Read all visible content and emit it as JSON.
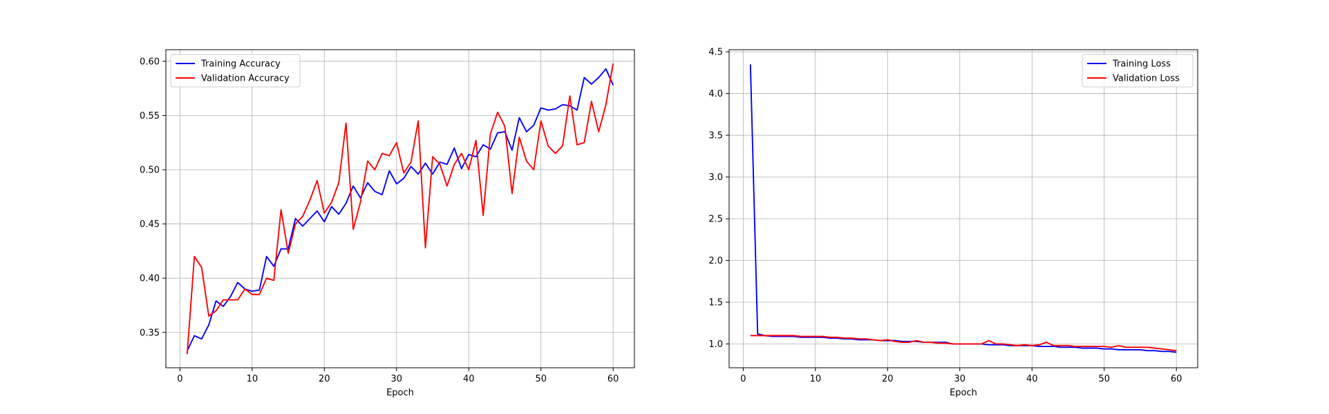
{
  "chart_data": [
    {
      "type": "line",
      "title": "",
      "xlabel": "Epoch",
      "ylabel": "",
      "xlim": [
        -1.95,
        62.95
      ],
      "ylim": [
        0.3174,
        0.6107
      ],
      "xticks": [
        0,
        10,
        20,
        30,
        40,
        50,
        60
      ],
      "xtick_labels": [
        "0",
        "10",
        "20",
        "30",
        "40",
        "50",
        "60"
      ],
      "yticks": [
        0.35,
        0.4,
        0.45,
        0.5,
        0.55,
        0.6
      ],
      "ytick_labels": [
        "0.35",
        "0.40",
        "0.45",
        "0.50",
        "0.55",
        "0.60"
      ],
      "grid": true,
      "legend_position": "upper left",
      "x": [
        1,
        2,
        3,
        4,
        5,
        6,
        7,
        8,
        9,
        10,
        11,
        12,
        13,
        14,
        15,
        16,
        17,
        18,
        19,
        20,
        21,
        22,
        23,
        24,
        25,
        26,
        27,
        28,
        29,
        30,
        31,
        32,
        33,
        34,
        35,
        36,
        37,
        38,
        39,
        40,
        41,
        42,
        43,
        44,
        45,
        46,
        47,
        48,
        49,
        50,
        51,
        52,
        53,
        54,
        55,
        56,
        57,
        58,
        59,
        60
      ],
      "series": [
        {
          "name": "Training Accuracy",
          "color": "#0000ff",
          "values": [
            0.333,
            0.347,
            0.344,
            0.357,
            0.379,
            0.374,
            0.383,
            0.396,
            0.39,
            0.388,
            0.389,
            0.42,
            0.411,
            0.427,
            0.427,
            0.455,
            0.448,
            0.455,
            0.462,
            0.452,
            0.466,
            0.459,
            0.469,
            0.485,
            0.474,
            0.488,
            0.48,
            0.477,
            0.499,
            0.487,
            0.492,
            0.503,
            0.496,
            0.506,
            0.496,
            0.507,
            0.505,
            0.52,
            0.501,
            0.514,
            0.512,
            0.523,
            0.519,
            0.534,
            0.535,
            0.518,
            0.548,
            0.535,
            0.541,
            0.557,
            0.555,
            0.556,
            0.56,
            0.559,
            0.555,
            0.585,
            0.579,
            0.585,
            0.593,
            0.578
          ]
        },
        {
          "name": "Validation Accuracy",
          "color": "#ff0000",
          "values": [
            0.33,
            0.42,
            0.41,
            0.365,
            0.37,
            0.38,
            0.38,
            0.38,
            0.39,
            0.385,
            0.385,
            0.4,
            0.398,
            0.463,
            0.423,
            0.45,
            0.457,
            0.472,
            0.49,
            0.46,
            0.47,
            0.488,
            0.543,
            0.445,
            0.47,
            0.508,
            0.5,
            0.515,
            0.513,
            0.525,
            0.497,
            0.507,
            0.545,
            0.428,
            0.512,
            0.505,
            0.485,
            0.505,
            0.515,
            0.5,
            0.527,
            0.458,
            0.533,
            0.553,
            0.54,
            0.478,
            0.53,
            0.508,
            0.5,
            0.545,
            0.522,
            0.515,
            0.522,
            0.568,
            0.523,
            0.525,
            0.563,
            0.535,
            0.56,
            0.598
          ]
        }
      ]
    },
    {
      "type": "line",
      "title": "",
      "xlabel": "Epoch",
      "ylabel": "",
      "xlim": [
        -1.95,
        62.95
      ],
      "ylim": [
        0.7145,
        4.5255
      ],
      "xticks": [
        0,
        10,
        20,
        30,
        40,
        50,
        60
      ],
      "xtick_labels": [
        "0",
        "10",
        "20",
        "30",
        "40",
        "50",
        "60"
      ],
      "yticks": [
        1.0,
        1.5,
        2.0,
        2.5,
        3.0,
        3.5,
        4.0,
        4.5
      ],
      "ytick_labels": [
        "1.0",
        "1.5",
        "2.0",
        "2.5",
        "3.0",
        "3.5",
        "4.0",
        "4.5"
      ],
      "grid": true,
      "legend_position": "upper right",
      "x": [
        1,
        2,
        3,
        4,
        5,
        6,
        7,
        8,
        9,
        10,
        11,
        12,
        13,
        14,
        15,
        16,
        17,
        18,
        19,
        20,
        21,
        22,
        23,
        24,
        25,
        26,
        27,
        28,
        29,
        30,
        31,
        32,
        33,
        34,
        35,
        36,
        37,
        38,
        39,
        40,
        41,
        42,
        43,
        44,
        45,
        46,
        47,
        48,
        49,
        50,
        51,
        52,
        53,
        54,
        55,
        56,
        57,
        58,
        59,
        60
      ],
      "series": [
        {
          "name": "Training Loss",
          "color": "#0000ff",
          "values": [
            4.35,
            1.12,
            1.1,
            1.09,
            1.09,
            1.09,
            1.09,
            1.08,
            1.08,
            1.08,
            1.08,
            1.07,
            1.07,
            1.06,
            1.06,
            1.05,
            1.05,
            1.05,
            1.04,
            1.04,
            1.04,
            1.03,
            1.03,
            1.03,
            1.02,
            1.02,
            1.02,
            1.02,
            1.0,
            1.0,
            1.0,
            1.0,
            1.0,
            0.99,
            0.99,
            0.99,
            0.98,
            0.98,
            0.98,
            0.98,
            0.97,
            0.97,
            0.97,
            0.96,
            0.96,
            0.96,
            0.95,
            0.95,
            0.95,
            0.94,
            0.94,
            0.93,
            0.93,
            0.93,
            0.93,
            0.92,
            0.92,
            0.91,
            0.91,
            0.9
          ]
        },
        {
          "name": "Validation Loss",
          "color": "#ff0000",
          "values": [
            1.1,
            1.1,
            1.1,
            1.1,
            1.1,
            1.1,
            1.1,
            1.09,
            1.09,
            1.09,
            1.09,
            1.08,
            1.08,
            1.07,
            1.07,
            1.06,
            1.06,
            1.05,
            1.04,
            1.05,
            1.03,
            1.02,
            1.02,
            1.04,
            1.02,
            1.02,
            1.01,
            1.01,
            1.0,
            1.0,
            1.0,
            1.0,
            1.0,
            1.04,
            1.0,
            1.0,
            0.99,
            0.98,
            0.99,
            0.98,
            0.99,
            1.02,
            0.98,
            0.98,
            0.98,
            0.97,
            0.97,
            0.97,
            0.97,
            0.97,
            0.96,
            0.98,
            0.96,
            0.96,
            0.96,
            0.96,
            0.95,
            0.94,
            0.93,
            0.92
          ]
        }
      ]
    }
  ]
}
